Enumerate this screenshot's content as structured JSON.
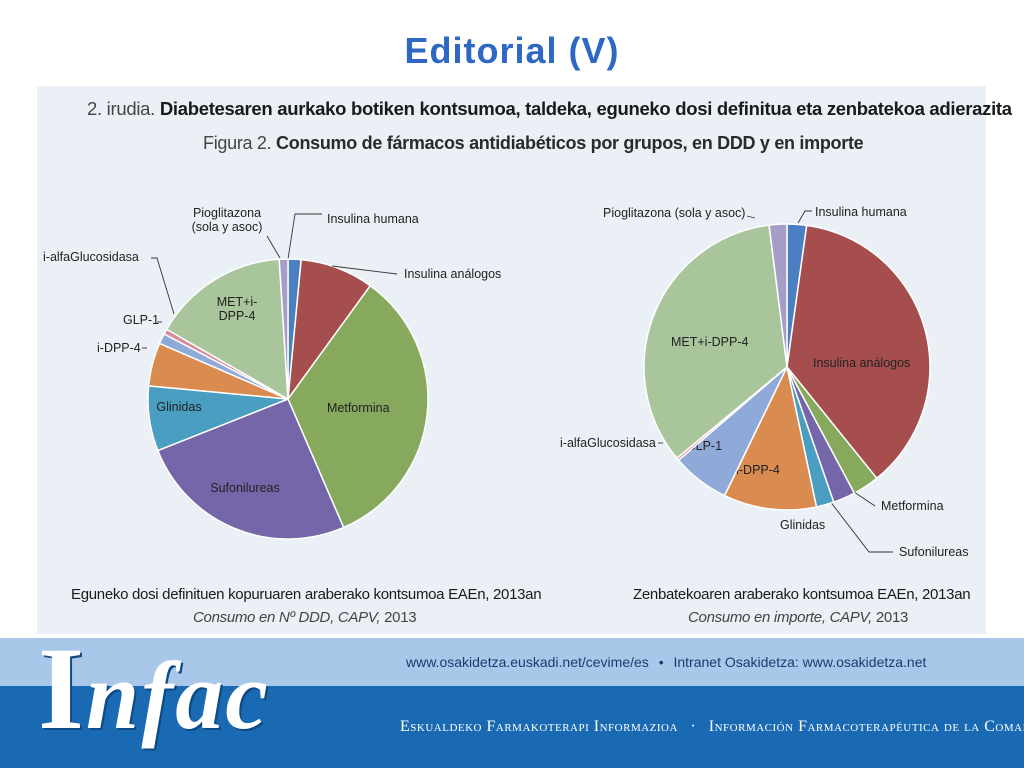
{
  "slide": {
    "title": "Editorial (V)"
  },
  "figure": {
    "title_eu_prefix": "2. irudia.",
    "title_eu": "Diabetesaren aurkako botiken kontsumoa, taldeka, eguneko dosi definitua eta zenbatekoa adierazita",
    "title_es_prefix": "Figura 2.",
    "title_es": "Consumo de fármacos antidiabéticos por grupos, en DDD y en importe"
  },
  "chart_data": [
    {
      "type": "pie",
      "title": "Eguneko dosi definituen kopuruaren araberako kontsumoa EAEn, 2013an",
      "subtitle": "Consumo en Nº DDD, CAPV, 2013",
      "subtitle_main": "Consumo en Nº DDD, CAPV,",
      "subtitle_year": "2013",
      "slices": [
        {
          "label": "Insulina humana",
          "value": 1.5,
          "color": "#4a7fc1"
        },
        {
          "label": "Insulina análogos",
          "value": 8.5,
          "color": "#a64e4e"
        },
        {
          "label": "Metformina",
          "value": 33.5,
          "color": "#86a95e"
        },
        {
          "label": "Sufonilureas",
          "value": 25.5,
          "color": "#7466a8"
        },
        {
          "label": "Glinidas",
          "value": 7.5,
          "color": "#4a9ec1"
        },
        {
          "label": "i-DPP-4",
          "value": 5.0,
          "color": "#da8c50"
        },
        {
          "label": "GLP-1",
          "value": 1.2,
          "color": "#8faad8"
        },
        {
          "label": "i-alfaGlucosidasa",
          "value": 0.6,
          "color": "#d98b9a"
        },
        {
          "label": "MET+i-DPP-4",
          "label_lines": [
            "MET+i-",
            "DPP-4"
          ],
          "value": 15.7,
          "color": "#a9c59c"
        },
        {
          "label": "Pioglitazona (sola y asoc)",
          "label_lines": [
            "Pioglitazona",
            "(sola y asoc)"
          ],
          "value": 1.0,
          "color": "#a59ec8"
        }
      ]
    },
    {
      "type": "pie",
      "title": "Zenbatekoaren araberako kontsumoa EAEn, 2013an",
      "subtitle": "Consumo en importe, CAPV, 2013",
      "subtitle_main": "Consumo en importe, CAPV,",
      "subtitle_year": "2013",
      "slices": [
        {
          "label": "Insulina humana",
          "value": 2.2,
          "color": "#4a7fc1"
        },
        {
          "label": "Insulina análogos",
          "value": 37.0,
          "color": "#a64e4e"
        },
        {
          "label": "Metformina",
          "value": 3.0,
          "color": "#86a95e"
        },
        {
          "label": "Sufonilureas",
          "value": 2.5,
          "color": "#7466a8"
        },
        {
          "label": "Glinidas",
          "value": 2.0,
          "color": "#4a9ec1"
        },
        {
          "label": "i-DPP-4",
          "value": 10.5,
          "color": "#da8c50"
        },
        {
          "label": "GLP-1",
          "value": 6.5,
          "color": "#8faad8"
        },
        {
          "label": "i-alfaGlucosidasa",
          "value": 0.3,
          "color": "#d98b9a"
        },
        {
          "label": "MET+i-DPP-4",
          "value": 34.0,
          "color": "#a9c59c"
        },
        {
          "label": "Pioglitazona (sola y asoc)",
          "value": 2.0,
          "color": "#a59ec8"
        }
      ]
    }
  ],
  "footer": {
    "logo": "Infac",
    "logo_first": "I",
    "logo_rest": "nfac",
    "link_1": "www.osakidetza.euskadi.net/cevime/es",
    "separator": "•",
    "link_2": "Intranet Osakidetza: www.osakidetza.net",
    "tagline_eu": "Eskualdeko Farmakoterapi Informazioa",
    "tagline_sep": "·",
    "tagline_es": "Información Farmacoterapéutica de la Comarca"
  }
}
